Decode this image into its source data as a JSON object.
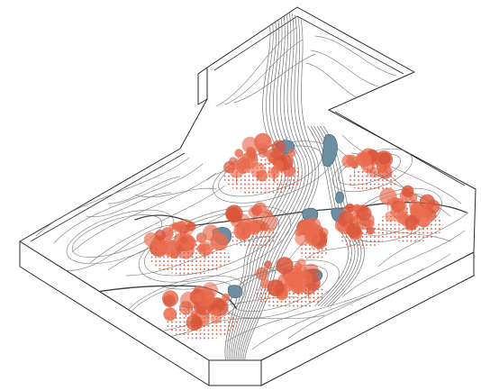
{
  "diagram": {
    "kind": "isometric-terrain-model",
    "colors": {
      "background": "#ffffff",
      "outline": "#2b2b2b",
      "contour": "#8a8a8a",
      "path": "#3a3f46",
      "water": "#6c8ea3",
      "water_edge": "#4e6c7e",
      "vegetation": "#ea6c4f",
      "vegetation_dark": "#d9553a",
      "planting_dot": "#d8573c"
    },
    "icons": [
      "terrain-block",
      "contour-lines",
      "pond",
      "tree-cluster",
      "planting-grid",
      "footpath"
    ]
  }
}
